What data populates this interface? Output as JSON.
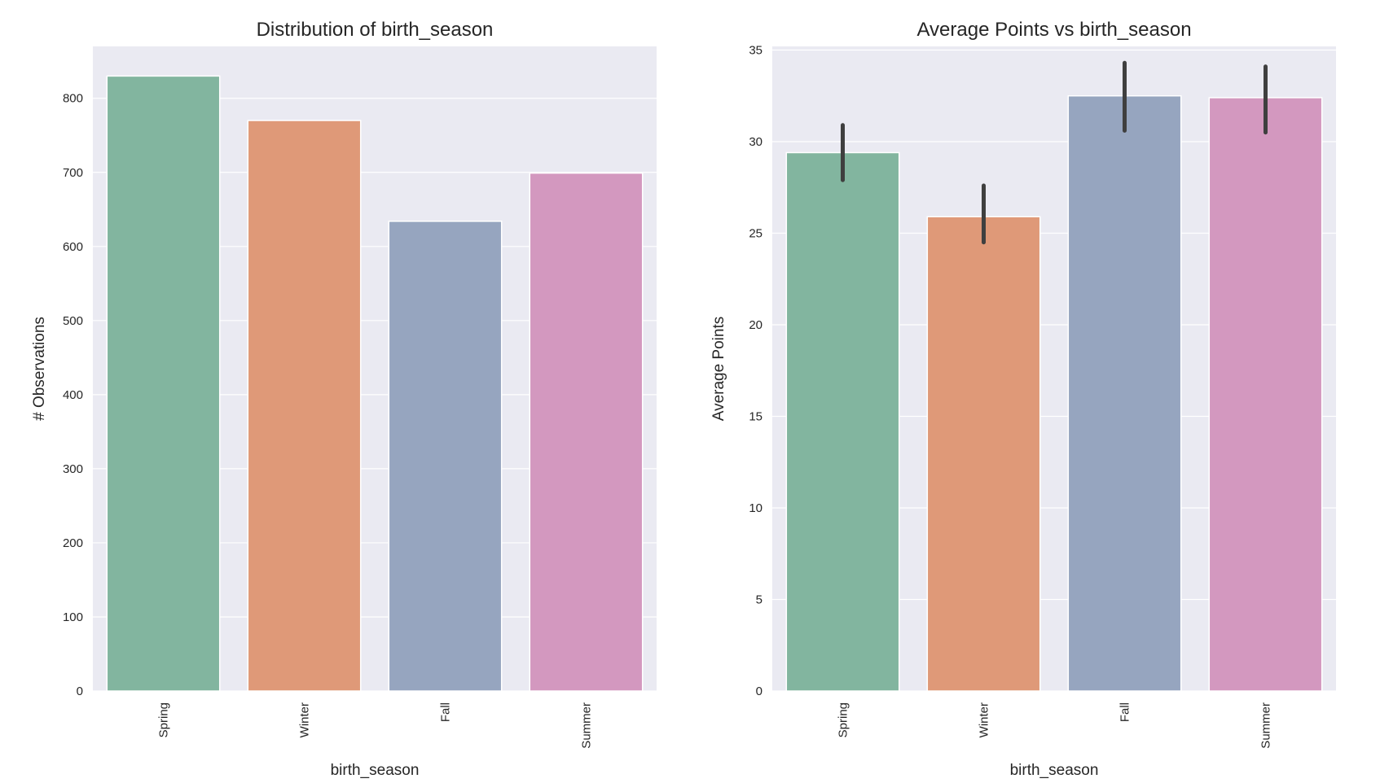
{
  "chart_data": [
    {
      "type": "bar",
      "title": "Distribution of birth_season",
      "xlabel": "birth_season",
      "ylabel": "# Observations",
      "categories": [
        "Spring",
        "Winter",
        "Fall",
        "Summer"
      ],
      "values": [
        830,
        770,
        634,
        699
      ],
      "ylim": [
        0,
        870
      ],
      "yticks": [
        0,
        100,
        200,
        300,
        400,
        500,
        600,
        700,
        800
      ],
      "colors": [
        "#82b59f",
        "#df9978",
        "#96a5bf",
        "#d398bf"
      ],
      "grid": true,
      "legend": "none"
    },
    {
      "type": "bar",
      "title": "Average Points vs birth_season",
      "xlabel": "birth_season",
      "ylabel": "Average Points",
      "categories": [
        "Spring",
        "Winter",
        "Fall",
        "Summer"
      ],
      "values": [
        29.4,
        25.9,
        32.5,
        32.4
      ],
      "error_low": [
        27.9,
        24.5,
        30.6,
        30.5
      ],
      "error_high": [
        30.9,
        27.6,
        34.3,
        34.1
      ],
      "ylim": [
        0,
        35.2
      ],
      "yticks": [
        0,
        5,
        10,
        15,
        20,
        25,
        30,
        35
      ],
      "colors": [
        "#82b59f",
        "#df9978",
        "#96a5bf",
        "#d398bf"
      ],
      "error_color": "#3f3f3f",
      "grid": true,
      "legend": "none"
    }
  ]
}
